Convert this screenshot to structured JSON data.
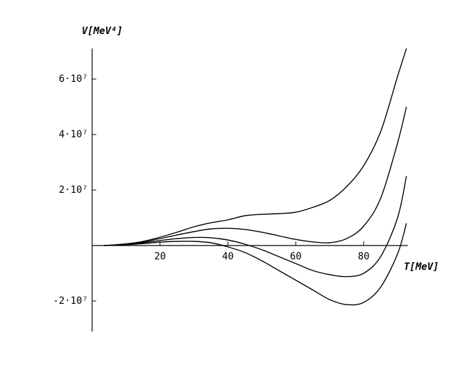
{
  "chart_data": {
    "type": "line",
    "y_label": "V[MeV⁴]",
    "x_label": "T[MeV]",
    "x": [
      3.5,
      5,
      10,
      15,
      20,
      25,
      30,
      35,
      40,
      45,
      50,
      55,
      60,
      65,
      70,
      75,
      80,
      85,
      90,
      92.6
    ],
    "series": [
      {
        "color": "#000000",
        "values": [
          0,
          100000,
          600000,
          1500000,
          3000000,
          4800000,
          6750000,
          8200000,
          9250000,
          10750000,
          11250000,
          11500000,
          12000000,
          13750000,
          16250000,
          21250000,
          28750000,
          41000000,
          61000000,
          71000000
        ]
      },
      {
        "color": "#000000",
        "values": [
          0,
          100000,
          500000,
          1300000,
          2500000,
          3800000,
          5000000,
          6000000,
          6200000,
          5800000,
          4800000,
          3500000,
          2200000,
          1300000,
          1000000,
          2500000,
          7000000,
          17000000,
          37000000,
          50000000
        ]
      },
      {
        "color": "#000000",
        "values": [
          0,
          100000,
          400000,
          1000000,
          1800000,
          2500000,
          2900000,
          2800000,
          2000000,
          500000,
          -1500000,
          -4000000,
          -6500000,
          -9000000,
          -10500000,
          -11200000,
          -10000000,
          -4000000,
          10000000,
          25000000
        ]
      },
      {
        "color": "#000000",
        "values": [
          0,
          50000,
          300000,
          700000,
          1200000,
          1500000,
          1500000,
          1000000,
          -500000,
          -2500000,
          -5500000,
          -9000000,
          -12500000,
          -16000000,
          -19500000,
          -21300000,
          -20500000,
          -15000000,
          -3000000,
          8000000
        ]
      }
    ],
    "xlim": [
      0,
      93
    ],
    "ylim": [
      -31000000,
      71000000
    ],
    "xticks": [
      20,
      40,
      60,
      80
    ],
    "yticks": [
      {
        "value": -20000000,
        "label": "-2·10⁷"
      },
      {
        "value": 20000000,
        "label": "2·10⁷"
      },
      {
        "value": 40000000,
        "label": "4·10⁷"
      },
      {
        "value": 60000000,
        "label": "6·10⁷"
      }
    ]
  }
}
